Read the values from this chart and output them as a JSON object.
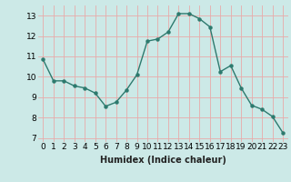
{
  "x": [
    0,
    1,
    2,
    3,
    4,
    5,
    6,
    7,
    8,
    9,
    10,
    11,
    12,
    13,
    14,
    15,
    16,
    17,
    18,
    19,
    20,
    21,
    22,
    23
  ],
  "y": [
    10.85,
    9.8,
    9.8,
    9.55,
    9.45,
    9.2,
    8.55,
    8.75,
    9.35,
    10.1,
    11.75,
    11.85,
    12.2,
    13.1,
    13.1,
    12.85,
    12.45,
    10.25,
    10.55,
    9.45,
    8.6,
    8.4,
    8.05,
    7.25
  ],
  "line_color": "#2d7a6e",
  "marker": "o",
  "marker_size": 2.2,
  "line_width": 1.0,
  "bg_color": "#cce9e7",
  "grid_color_major": "#e8aaaa",
  "grid_color_minor": "#cfdede",
  "xlabel": "Humidex (Indice chaleur)",
  "xlabel_fontsize": 7,
  "tick_fontsize": 6.5,
  "xlim": [
    -0.5,
    23.5
  ],
  "ylim": [
    6.8,
    13.5
  ],
  "yticks": [
    7,
    8,
    9,
    10,
    11,
    12,
    13
  ],
  "xticks": [
    0,
    1,
    2,
    3,
    4,
    5,
    6,
    7,
    8,
    9,
    10,
    11,
    12,
    13,
    14,
    15,
    16,
    17,
    18,
    19,
    20,
    21,
    22,
    23
  ]
}
